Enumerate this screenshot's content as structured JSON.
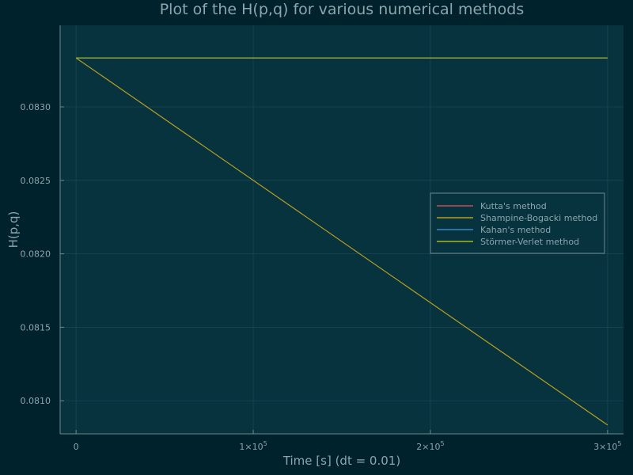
{
  "chart_data": {
    "type": "line",
    "title": "Plot of the H(p,q) for various numerical methods",
    "xlabel": "Time [s] (dt = 0.01)",
    "ylabel": "H(p,q)",
    "xlim": [
      -9000,
      309000
    ],
    "ylim": [
      0.080775,
      0.083555
    ],
    "x_ticks": [
      {
        "value": 0,
        "label": "0",
        "exp": ""
      },
      {
        "value": 100000,
        "label": "1×10",
        "exp": "5"
      },
      {
        "value": 200000,
        "label": "2×10",
        "exp": "5"
      },
      {
        "value": 300000,
        "label": "3×10",
        "exp": "5"
      }
    ],
    "y_ticks": [
      {
        "value": 0.081,
        "label": "0.0810"
      },
      {
        "value": 0.0815,
        "label": "0.0815"
      },
      {
        "value": 0.082,
        "label": "0.0820"
      },
      {
        "value": 0.0825,
        "label": "0.0825"
      },
      {
        "value": 0.083,
        "label": "0.0830"
      }
    ],
    "grid": true,
    "legend_position": "right",
    "series": [
      {
        "name": "Kutta's method",
        "color": "#c44e52",
        "x": [
          0,
          300000
        ],
        "y": [
          0.083333,
          0.083333
        ]
      },
      {
        "name": "Shampine-Bogacki method",
        "color": "#b8a020",
        "x": [
          0,
          300000
        ],
        "y": [
          0.083333,
          0.080835
        ]
      },
      {
        "name": "Kahan's method",
        "color": "#3b87c4",
        "x": [
          0,
          300000
        ],
        "y": [
          0.083333,
          0.083333
        ]
      },
      {
        "name": "Störmer-Verlet method",
        "color": "#a6b820",
        "x": [
          0,
          300000
        ],
        "y": [
          0.083333,
          0.083333
        ]
      }
    ]
  },
  "colors": {
    "background": "#00222c",
    "plot_area": "#07333f",
    "grid": "#1a4653",
    "axis": "#6d8890",
    "text": "#8da5ad"
  }
}
